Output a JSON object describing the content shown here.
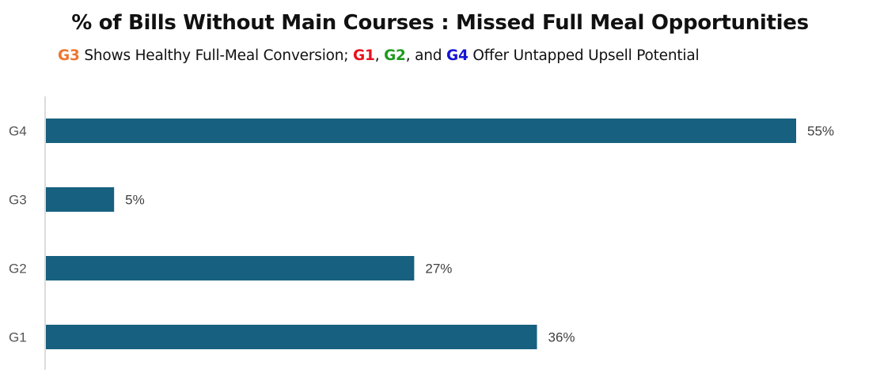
{
  "chart_data": {
    "type": "bar",
    "orientation": "horizontal",
    "title": "% of Bills Without Main Courses : Missed Full Meal Opportunities",
    "subtitle": {
      "g3": "G3",
      "part1": " Shows Healthy Full-Meal Conversion; ",
      "g1": "G1",
      "comma1": ", ",
      "g2": "G2",
      "and": ", and ",
      "g4": "G4",
      "part2": " Offer Untapped Upsell Potential"
    },
    "categories": [
      "G4",
      "G3",
      "G2",
      "G1"
    ],
    "values": [
      55,
      5,
      27,
      36
    ],
    "value_labels": [
      "55%",
      "5%",
      "27%",
      "36%"
    ],
    "xlim": [
      0,
      55
    ],
    "grid": false,
    "legend": "none",
    "colors": {
      "bar": "#17607F",
      "axis": "#d0d0d0",
      "g1": "#E8111B",
      "g2": "#1E9A1E",
      "g3": "#EE7631",
      "g4": "#1515D6"
    }
  }
}
